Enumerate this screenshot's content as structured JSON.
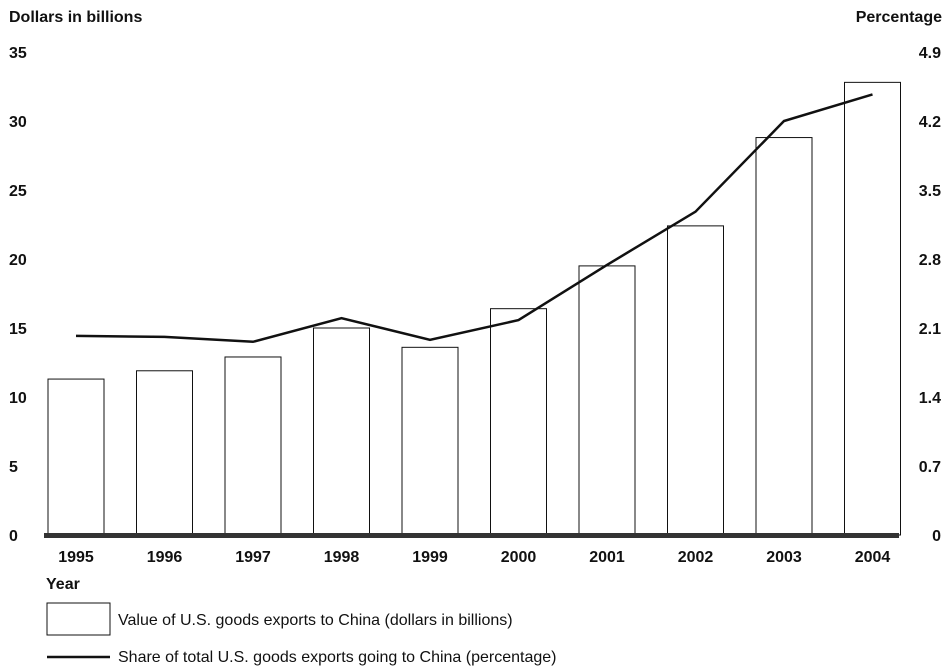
{
  "chart_data": {
    "type": "bar+line",
    "categories": [
      "1995",
      "1996",
      "1997",
      "1998",
      "1999",
      "2000",
      "2001",
      "2002",
      "2003",
      "2004"
    ],
    "series": [
      {
        "name": "Value of U.S. goods exports to China (dollars in billions)",
        "type": "bar",
        "axis": "left",
        "values": [
          11.3,
          11.9,
          12.9,
          15.0,
          13.6,
          16.4,
          19.5,
          22.4,
          28.8,
          32.8
        ]
      },
      {
        "name": "Share of total U.S. goods exports going to China (percentage)",
        "type": "line",
        "axis": "right",
        "values": [
          2.02,
          2.01,
          1.96,
          2.2,
          1.98,
          2.18,
          2.74,
          3.28,
          4.2,
          4.47
        ]
      }
    ],
    "left_axis": {
      "label": "Dollars in billions",
      "min": 0,
      "max": 35,
      "ticks": [
        "0",
        "5",
        "10",
        "15",
        "20",
        "25",
        "30",
        "35"
      ]
    },
    "right_axis": {
      "label": "Percentage",
      "min": 0,
      "max": 4.9,
      "ticks": [
        "0",
        "0.7",
        "1.4",
        "2.1",
        "2.8",
        "3.5",
        "4.2",
        "4.9"
      ]
    },
    "x_axis": {
      "label": "Year"
    },
    "grid": false,
    "legend_position": "bottom-left",
    "colors": {
      "bar_fill": "#ffffff",
      "stroke": "#111111",
      "baseline": "#333333"
    }
  }
}
